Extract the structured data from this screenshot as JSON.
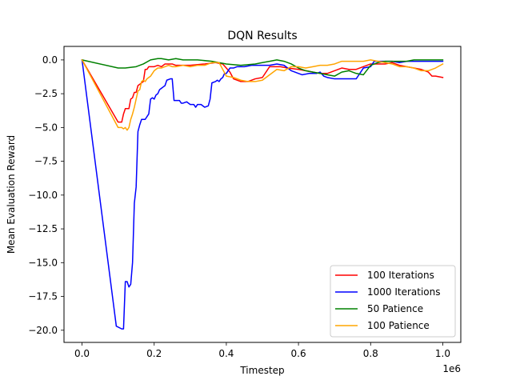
{
  "chart_data": {
    "type": "line",
    "title": "DQN Results",
    "xlabel": "Timestep",
    "ylabel": "Mean Evaluation Reward",
    "x_offset_label": "1e6",
    "xlim": [
      -0.05,
      1.05
    ],
    "ylim": [
      -20.9,
      1.0
    ],
    "xticks": [
      0.0,
      0.2,
      0.4,
      0.6,
      0.8,
      1.0
    ],
    "xtick_labels": [
      "0.0",
      "0.2",
      "0.4",
      "0.6",
      "0.8",
      "1.0"
    ],
    "yticks": [
      0.0,
      -2.5,
      -5.0,
      -7.5,
      -10.0,
      -12.5,
      -15.0,
      -17.5,
      -20.0
    ],
    "ytick_labels": [
      "0.0",
      "−2.5",
      "−5.0",
      "−7.5",
      "−10.0",
      "−12.5",
      "−15.0",
      "−17.5",
      "−20.0"
    ],
    "grid": false,
    "legend_position": "lower-right",
    "series": [
      {
        "name": "100 Iterations",
        "color": "#ff0000",
        "points": [
          [
            0.0,
            0.0
          ],
          [
            0.1,
            -4.6
          ],
          [
            0.11,
            -4.6
          ],
          [
            0.115,
            -4.0
          ],
          [
            0.12,
            -3.6
          ],
          [
            0.13,
            -3.6
          ],
          [
            0.135,
            -2.9
          ],
          [
            0.14,
            -2.8
          ],
          [
            0.145,
            -2.4
          ],
          [
            0.15,
            -2.4
          ],
          [
            0.155,
            -1.9
          ],
          [
            0.16,
            -1.8
          ],
          [
            0.17,
            -1.6
          ],
          [
            0.175,
            -0.7
          ],
          [
            0.18,
            -0.7
          ],
          [
            0.185,
            -0.5
          ],
          [
            0.2,
            -0.5
          ],
          [
            0.21,
            -0.4
          ],
          [
            0.22,
            -0.5
          ],
          [
            0.23,
            -0.3
          ],
          [
            0.25,
            -0.3
          ],
          [
            0.26,
            -0.4
          ],
          [
            0.3,
            -0.4
          ],
          [
            0.34,
            -0.3
          ],
          [
            0.37,
            -0.2
          ],
          [
            0.39,
            -0.3
          ],
          [
            0.41,
            -0.9
          ],
          [
            0.42,
            -1.4
          ],
          [
            0.44,
            -1.6
          ],
          [
            0.46,
            -1.6
          ],
          [
            0.48,
            -1.4
          ],
          [
            0.5,
            -1.3
          ],
          [
            0.52,
            -0.5
          ],
          [
            0.55,
            -0.5
          ],
          [
            0.57,
            -0.6
          ],
          [
            0.6,
            -0.7
          ],
          [
            0.62,
            -0.8
          ],
          [
            0.64,
            -0.9
          ],
          [
            0.66,
            -1.0
          ],
          [
            0.68,
            -1.0
          ],
          [
            0.7,
            -0.8
          ],
          [
            0.72,
            -0.6
          ],
          [
            0.74,
            -0.7
          ],
          [
            0.76,
            -0.7
          ],
          [
            0.78,
            -0.5
          ],
          [
            0.8,
            -0.3
          ],
          [
            0.82,
            -0.3
          ],
          [
            0.84,
            -0.3
          ],
          [
            0.86,
            -0.2
          ],
          [
            0.88,
            -0.4
          ],
          [
            0.9,
            -0.5
          ],
          [
            0.92,
            -0.6
          ],
          [
            0.94,
            -0.7
          ],
          [
            0.96,
            -0.9
          ],
          [
            0.97,
            -1.2
          ],
          [
            0.98,
            -1.2
          ],
          [
            1.0,
            -1.3
          ]
        ]
      },
      {
        "name": "1000 Iterations",
        "color": "#0000ff",
        "points": [
          [
            0.0,
            0.0
          ],
          [
            0.095,
            -19.7
          ],
          [
            0.11,
            -19.9
          ],
          [
            0.115,
            -19.9
          ],
          [
            0.12,
            -16.4
          ],
          [
            0.125,
            -16.4
          ],
          [
            0.13,
            -16.8
          ],
          [
            0.135,
            -16.6
          ],
          [
            0.14,
            -15.0
          ],
          [
            0.145,
            -10.6
          ],
          [
            0.15,
            -9.4
          ],
          [
            0.155,
            -5.3
          ],
          [
            0.16,
            -4.8
          ],
          [
            0.165,
            -4.4
          ],
          [
            0.17,
            -4.4
          ],
          [
            0.175,
            -4.4
          ],
          [
            0.18,
            -4.2
          ],
          [
            0.185,
            -4.0
          ],
          [
            0.19,
            -2.9
          ],
          [
            0.195,
            -2.8
          ],
          [
            0.2,
            -2.9
          ],
          [
            0.205,
            -2.6
          ],
          [
            0.21,
            -2.5
          ],
          [
            0.215,
            -2.2
          ],
          [
            0.22,
            -2.1
          ],
          [
            0.225,
            -2.0
          ],
          [
            0.23,
            -1.9
          ],
          [
            0.235,
            -1.5
          ],
          [
            0.245,
            -1.4
          ],
          [
            0.25,
            -1.4
          ],
          [
            0.255,
            -3.0
          ],
          [
            0.26,
            -3.0
          ],
          [
            0.27,
            -3.0
          ],
          [
            0.275,
            -3.2
          ],
          [
            0.28,
            -3.2
          ],
          [
            0.29,
            -3.1
          ],
          [
            0.3,
            -3.3
          ],
          [
            0.31,
            -3.3
          ],
          [
            0.315,
            -3.5
          ],
          [
            0.32,
            -3.3
          ],
          [
            0.33,
            -3.3
          ],
          [
            0.335,
            -3.4
          ],
          [
            0.34,
            -3.5
          ],
          [
            0.35,
            -3.4
          ],
          [
            0.355,
            -2.9
          ],
          [
            0.36,
            -1.7
          ],
          [
            0.37,
            -1.6
          ],
          [
            0.375,
            -1.5
          ],
          [
            0.38,
            -1.6
          ],
          [
            0.385,
            -1.4
          ],
          [
            0.39,
            -1.3
          ],
          [
            0.395,
            -1.0
          ],
          [
            0.4,
            -1.0
          ],
          [
            0.41,
            -0.6
          ],
          [
            0.42,
            -0.6
          ],
          [
            0.43,
            -0.5
          ],
          [
            0.45,
            -0.5
          ],
          [
            0.47,
            -0.4
          ],
          [
            0.5,
            -0.4
          ],
          [
            0.52,
            -0.4
          ],
          [
            0.54,
            -0.3
          ],
          [
            0.56,
            -0.4
          ],
          [
            0.57,
            -0.6
          ],
          [
            0.58,
            -0.8
          ],
          [
            0.59,
            -0.9
          ],
          [
            0.6,
            -1.0
          ],
          [
            0.61,
            -1.1
          ],
          [
            0.63,
            -1.0
          ],
          [
            0.65,
            -1.0
          ],
          [
            0.66,
            -0.9
          ],
          [
            0.67,
            -1.2
          ],
          [
            0.68,
            -1.3
          ],
          [
            0.7,
            -1.4
          ],
          [
            0.76,
            -1.4
          ],
          [
            0.77,
            -1.0
          ],
          [
            0.78,
            -0.6
          ],
          [
            0.8,
            -0.5
          ],
          [
            0.81,
            -0.1
          ],
          [
            0.84,
            -0.1
          ],
          [
            0.86,
            -0.1
          ],
          [
            0.88,
            -0.2
          ],
          [
            0.9,
            -0.1
          ],
          [
            0.93,
            -0.1
          ],
          [
            0.96,
            -0.1
          ],
          [
            1.0,
            -0.1
          ]
        ]
      },
      {
        "name": "50 Patience",
        "color": "#008000",
        "points": [
          [
            0.0,
            0.0
          ],
          [
            0.1,
            -0.6
          ],
          [
            0.12,
            -0.6
          ],
          [
            0.15,
            -0.5
          ],
          [
            0.17,
            -0.3
          ],
          [
            0.19,
            0.0
          ],
          [
            0.21,
            0.1
          ],
          [
            0.22,
            0.1
          ],
          [
            0.24,
            0.0
          ],
          [
            0.26,
            0.1
          ],
          [
            0.28,
            0.0
          ],
          [
            0.32,
            0.0
          ],
          [
            0.36,
            -0.1
          ],
          [
            0.4,
            -0.3
          ],
          [
            0.44,
            -0.4
          ],
          [
            0.48,
            -0.3
          ],
          [
            0.5,
            -0.2
          ],
          [
            0.52,
            -0.1
          ],
          [
            0.54,
            0.0
          ],
          [
            0.56,
            -0.1
          ],
          [
            0.58,
            -0.3
          ],
          [
            0.6,
            -0.6
          ],
          [
            0.62,
            -0.8
          ],
          [
            0.64,
            -0.9
          ],
          [
            0.66,
            -1.0
          ],
          [
            0.68,
            -1.1
          ],
          [
            0.7,
            -1.2
          ],
          [
            0.72,
            -0.9
          ],
          [
            0.74,
            -0.8
          ],
          [
            0.76,
            -1.0
          ],
          [
            0.78,
            -1.1
          ],
          [
            0.8,
            -0.4
          ],
          [
            0.82,
            -0.2
          ],
          [
            0.84,
            -0.1
          ],
          [
            0.86,
            -0.1
          ],
          [
            0.88,
            -0.1
          ],
          [
            0.9,
            -0.1
          ],
          [
            0.92,
            0.0
          ],
          [
            0.96,
            0.0
          ],
          [
            1.0,
            0.0
          ]
        ]
      },
      {
        "name": "100 Patience",
        "color": "#ffa500",
        "points": [
          [
            0.0,
            0.0
          ],
          [
            0.1,
            -5.0
          ],
          [
            0.11,
            -5.0
          ],
          [
            0.115,
            -5.1
          ],
          [
            0.12,
            -5.0
          ],
          [
            0.125,
            -5.2
          ],
          [
            0.13,
            -5.0
          ],
          [
            0.135,
            -4.4
          ],
          [
            0.14,
            -4.0
          ],
          [
            0.145,
            -3.5
          ],
          [
            0.15,
            -2.9
          ],
          [
            0.155,
            -2.3
          ],
          [
            0.16,
            -2.2
          ],
          [
            0.165,
            -1.6
          ],
          [
            0.17,
            -1.5
          ],
          [
            0.175,
            -1.6
          ],
          [
            0.18,
            -1.4
          ],
          [
            0.185,
            -1.3
          ],
          [
            0.19,
            -1.2
          ],
          [
            0.2,
            -0.8
          ],
          [
            0.21,
            -0.6
          ],
          [
            0.22,
            -0.6
          ],
          [
            0.23,
            -0.5
          ],
          [
            0.24,
            -0.4
          ],
          [
            0.25,
            -0.5
          ],
          [
            0.26,
            -0.5
          ],
          [
            0.28,
            -0.4
          ],
          [
            0.3,
            -0.5
          ],
          [
            0.32,
            -0.4
          ],
          [
            0.34,
            -0.4
          ],
          [
            0.36,
            -0.2
          ],
          [
            0.38,
            -0.2
          ],
          [
            0.4,
            -1.2
          ],
          [
            0.42,
            -1.3
          ],
          [
            0.44,
            -1.5
          ],
          [
            0.46,
            -1.6
          ],
          [
            0.48,
            -1.6
          ],
          [
            0.5,
            -1.5
          ],
          [
            0.52,
            -1.1
          ],
          [
            0.54,
            -0.7
          ],
          [
            0.56,
            -0.8
          ],
          [
            0.58,
            -0.5
          ],
          [
            0.6,
            -0.5
          ],
          [
            0.62,
            -0.6
          ],
          [
            0.64,
            -0.5
          ],
          [
            0.66,
            -0.4
          ],
          [
            0.68,
            -0.4
          ],
          [
            0.7,
            -0.3
          ],
          [
            0.72,
            -0.1
          ],
          [
            0.74,
            -0.1
          ],
          [
            0.76,
            -0.1
          ],
          [
            0.78,
            -0.1
          ],
          [
            0.8,
            0.0
          ],
          [
            0.82,
            -0.1
          ],
          [
            0.84,
            -0.2
          ],
          [
            0.86,
            -0.3
          ],
          [
            0.88,
            -0.5
          ],
          [
            0.9,
            -0.5
          ],
          [
            0.92,
            -0.6
          ],
          [
            0.94,
            -0.8
          ],
          [
            0.96,
            -0.8
          ],
          [
            0.98,
            -0.6
          ],
          [
            1.0,
            -0.3
          ]
        ]
      }
    ]
  }
}
